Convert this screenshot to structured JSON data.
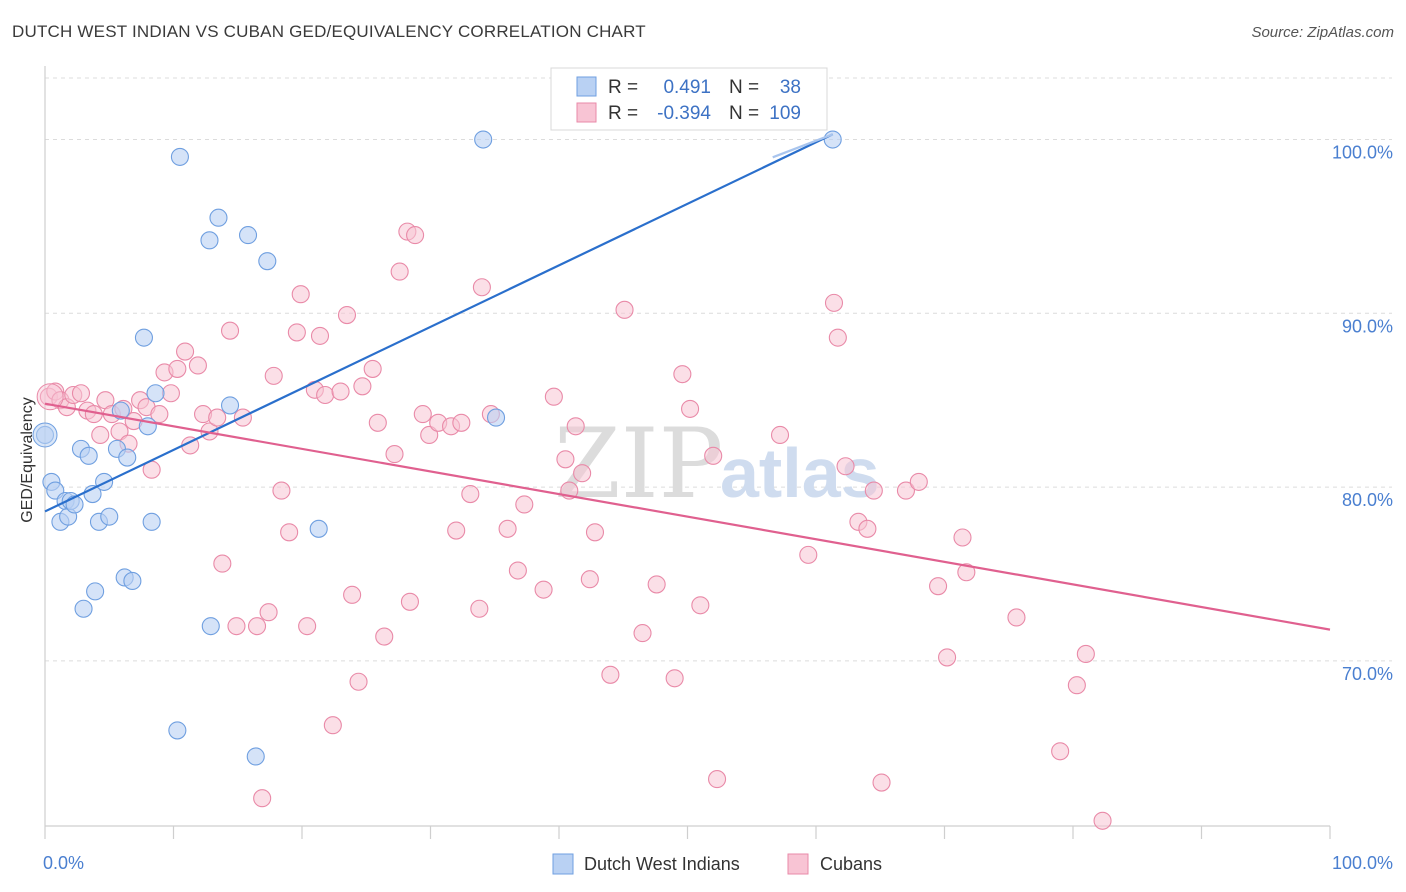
{
  "header": {
    "title": "DUTCH WEST INDIAN VS CUBAN GED/EQUIVALENCY CORRELATION CHART",
    "source": "Source: ZipAtlas.com"
  },
  "watermark": {
    "zip": "ZIP",
    "atlas": "atlas"
  },
  "legend": {
    "rows": [
      {
        "r_label": "R =",
        "r_value": "0.491",
        "n_label": "N =",
        "n_value": "38"
      },
      {
        "r_label": "R =",
        "r_value": "-0.394",
        "n_label": "N =",
        "n_value": "109"
      }
    ]
  },
  "colors": {
    "blue_fill": "#b9d1f3",
    "blue_stroke": "#6f9fe0",
    "blue_line": "#2a6fcc",
    "pink_fill": "#f8c4d4",
    "pink_stroke": "#e98aa8",
    "pink_line": "#e0608f",
    "grid": "#dcdcdc",
    "tick_text": "#4a7fd0"
  },
  "chart_data": {
    "type": "scatter",
    "xlabel": "",
    "ylabel": "GED/Equivalency",
    "x_tick_labels": [
      "0.0%",
      "100.0%"
    ],
    "y_tick_labels": [
      "100.0%",
      "90.0%",
      "80.0%",
      "70.0%"
    ],
    "y_ticks": [
      100,
      90,
      80,
      70
    ],
    "xlim": [
      0,
      100
    ],
    "ylim": [
      60.5,
      104
    ],
    "grid": true,
    "legend_position": "bottom",
    "series": [
      {
        "name": "Dutch West Indians",
        "color": "#b9d1f3",
        "points": [
          [
            0.0,
            83.0
          ],
          [
            0.5,
            80.3
          ],
          [
            0.8,
            79.8
          ],
          [
            1.2,
            78.0
          ],
          [
            1.6,
            79.2
          ],
          [
            1.8,
            78.3
          ],
          [
            2.0,
            79.2
          ],
          [
            2.3,
            79.0
          ],
          [
            2.8,
            82.2
          ],
          [
            3.0,
            73.0
          ],
          [
            3.4,
            81.8
          ],
          [
            3.7,
            79.6
          ],
          [
            3.9,
            74.0
          ],
          [
            4.2,
            78.0
          ],
          [
            4.6,
            80.3
          ],
          [
            5.0,
            78.3
          ],
          [
            5.6,
            82.2
          ],
          [
            5.9,
            84.4
          ],
          [
            6.2,
            74.8
          ],
          [
            6.4,
            81.7
          ],
          [
            6.8,
            74.6
          ],
          [
            7.7,
            88.6
          ],
          [
            8.0,
            83.5
          ],
          [
            8.3,
            78.0
          ],
          [
            8.6,
            85.4
          ],
          [
            10.3,
            66.0
          ],
          [
            10.5,
            99.0
          ],
          [
            12.8,
            94.2
          ],
          [
            12.9,
            72.0
          ],
          [
            13.5,
            95.5
          ],
          [
            14.4,
            84.7
          ],
          [
            15.8,
            94.5
          ],
          [
            16.4,
            64.5
          ],
          [
            17.3,
            93.0
          ],
          [
            21.3,
            77.6
          ],
          [
            34.1,
            100.0
          ],
          [
            35.1,
            84.0
          ],
          [
            61.3,
            100.0
          ]
        ]
      },
      {
        "name": "Cubans",
        "color": "#f8c4d4",
        "points": [
          [
            0.3,
            85.2
          ],
          [
            0.8,
            85.5
          ],
          [
            1.2,
            85.0
          ],
          [
            1.7,
            84.6
          ],
          [
            2.2,
            85.3
          ],
          [
            2.8,
            85.4
          ],
          [
            3.3,
            84.4
          ],
          [
            3.8,
            84.2
          ],
          [
            4.3,
            83.0
          ],
          [
            4.7,
            85.0
          ],
          [
            5.2,
            84.2
          ],
          [
            5.8,
            83.2
          ],
          [
            6.1,
            84.5
          ],
          [
            6.5,
            82.5
          ],
          [
            6.9,
            83.8
          ],
          [
            7.4,
            85.0
          ],
          [
            7.9,
            84.6
          ],
          [
            8.3,
            81.0
          ],
          [
            8.9,
            84.2
          ],
          [
            9.3,
            86.6
          ],
          [
            9.8,
            85.4
          ],
          [
            10.3,
            86.8
          ],
          [
            10.9,
            87.8
          ],
          [
            11.3,
            82.4
          ],
          [
            11.9,
            87.0
          ],
          [
            12.3,
            84.2
          ],
          [
            12.8,
            83.2
          ],
          [
            13.4,
            84.0
          ],
          [
            13.8,
            75.6
          ],
          [
            14.4,
            89.0
          ],
          [
            14.9,
            72.0
          ],
          [
            15.4,
            84.0
          ],
          [
            16.5,
            72.0
          ],
          [
            16.9,
            62.1
          ],
          [
            17.4,
            72.8
          ],
          [
            17.8,
            86.4
          ],
          [
            18.4,
            79.8
          ],
          [
            19.0,
            77.4
          ],
          [
            19.6,
            88.9
          ],
          [
            19.9,
            91.1
          ],
          [
            20.4,
            72.0
          ],
          [
            21.0,
            85.6
          ],
          [
            21.4,
            88.7
          ],
          [
            21.8,
            85.3
          ],
          [
            22.4,
            66.3
          ],
          [
            23.0,
            85.5
          ],
          [
            23.5,
            89.9
          ],
          [
            23.9,
            73.8
          ],
          [
            24.4,
            68.8
          ],
          [
            24.7,
            85.8
          ],
          [
            25.5,
            86.8
          ],
          [
            25.9,
            83.7
          ],
          [
            26.4,
            71.4
          ],
          [
            27.2,
            81.9
          ],
          [
            27.6,
            92.4
          ],
          [
            28.2,
            94.7
          ],
          [
            28.4,
            73.4
          ],
          [
            28.8,
            94.5
          ],
          [
            29.4,
            84.2
          ],
          [
            29.9,
            83.0
          ],
          [
            30.6,
            83.7
          ],
          [
            31.6,
            83.5
          ],
          [
            32.0,
            77.5
          ],
          [
            32.4,
            83.7
          ],
          [
            33.1,
            79.6
          ],
          [
            33.8,
            73.0
          ],
          [
            34.0,
            91.5
          ],
          [
            34.7,
            84.2
          ],
          [
            36.0,
            77.6
          ],
          [
            36.8,
            75.2
          ],
          [
            37.3,
            79.0
          ],
          [
            38.8,
            74.1
          ],
          [
            39.6,
            85.2
          ],
          [
            40.5,
            81.6
          ],
          [
            40.8,
            79.8
          ],
          [
            41.3,
            83.5
          ],
          [
            41.8,
            80.8
          ],
          [
            42.4,
            74.7
          ],
          [
            42.8,
            77.4
          ],
          [
            44.0,
            69.2
          ],
          [
            45.1,
            90.2
          ],
          [
            46.5,
            71.6
          ],
          [
            47.6,
            74.4
          ],
          [
            49.0,
            69.0
          ],
          [
            49.6,
            86.5
          ],
          [
            50.2,
            84.5
          ],
          [
            51.0,
            73.2
          ],
          [
            52.0,
            81.8
          ],
          [
            52.3,
            63.2
          ],
          [
            57.2,
            83.0
          ],
          [
            59.4,
            76.1
          ],
          [
            61.4,
            90.6
          ],
          [
            61.7,
            88.6
          ],
          [
            62.3,
            81.2
          ],
          [
            63.3,
            78.0
          ],
          [
            64.0,
            77.6
          ],
          [
            64.5,
            79.8
          ],
          [
            65.1,
            63.0
          ],
          [
            67.0,
            79.8
          ],
          [
            68.0,
            80.3
          ],
          [
            69.5,
            74.3
          ],
          [
            70.2,
            70.2
          ],
          [
            71.4,
            77.1
          ],
          [
            71.7,
            75.1
          ],
          [
            75.6,
            72.5
          ],
          [
            79.0,
            64.8
          ],
          [
            80.3,
            68.6
          ],
          [
            81.0,
            70.4
          ],
          [
            82.3,
            60.8
          ]
        ]
      }
    ],
    "trend_lines": [
      {
        "series": "Dutch West Indians",
        "x": [
          0,
          61.3
        ],
        "y": [
          78.6,
          100.3
        ]
      },
      {
        "series": "Cubans",
        "x": [
          0,
          100
        ],
        "y": [
          84.8,
          71.8
        ]
      }
    ]
  }
}
